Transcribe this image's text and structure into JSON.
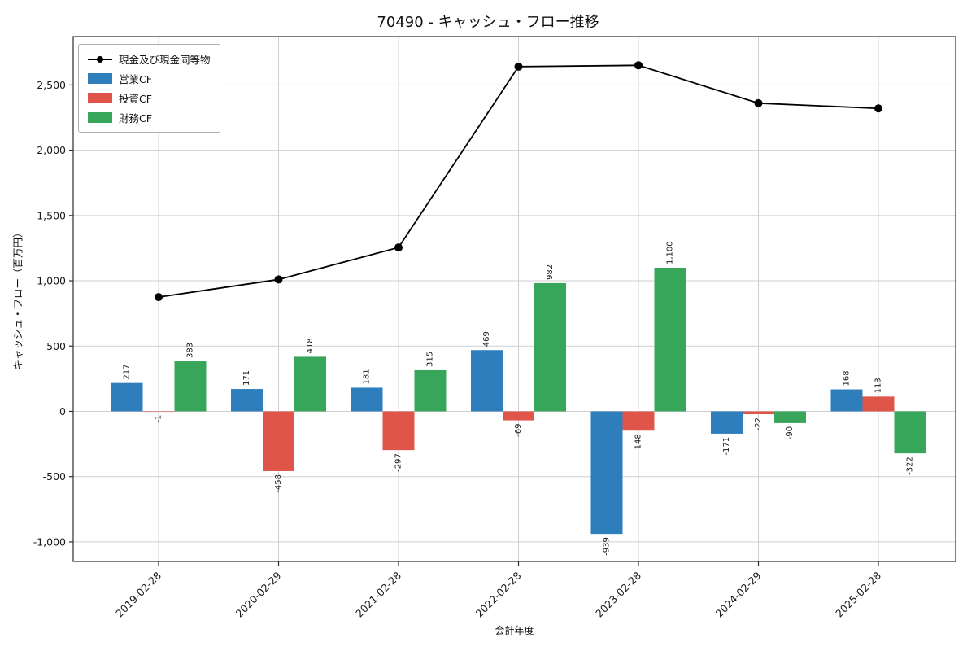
{
  "figure": {
    "title": "70490 - キャッシュ・フロー推移",
    "xlabel": "会計年度",
    "ylabel": "キャッシュ・フロー（百万円）"
  },
  "legend": {
    "items": [
      {
        "label": "現金及び現金同等物",
        "type": "line",
        "color": "#000000"
      },
      {
        "label": "営業CF",
        "type": "swatch",
        "color": "#2e7ebc"
      },
      {
        "label": "投資CF",
        "type": "swatch",
        "color": "#e0554a"
      },
      {
        "label": "財務CF",
        "type": "swatch",
        "color": "#38a65a"
      }
    ]
  },
  "chart_data": {
    "type": "bar+line",
    "title": "70490 - キャッシュ・フロー推移",
    "xlabel": "会計年度",
    "ylabel": "キャッシュ・フロー（百万円）",
    "categories": [
      "2019-02-28",
      "2020-02-29",
      "2021-02-28",
      "2022-02-28",
      "2023-02-28",
      "2024-02-29",
      "2025-02-28"
    ],
    "series": [
      {
        "name": "営業CF",
        "key": "operating-cf",
        "type": "bar",
        "color": "#2e7ebc",
        "values": [
          217,
          171,
          181,
          469,
          -939,
          -171,
          168
        ]
      },
      {
        "name": "投資CF",
        "key": "investing-cf",
        "type": "bar",
        "color": "#e0554a",
        "values": [
          -1,
          -458,
          -297,
          -69,
          -148,
          -22,
          113
        ]
      },
      {
        "name": "財務CF",
        "key": "financing-cf",
        "type": "bar",
        "color": "#38a65a",
        "values": [
          383,
          418,
          315,
          982,
          1100,
          -90,
          -322
        ]
      }
    ],
    "line_series": {
      "name": "現金及び現金同等物",
      "key": "cash-and-equivalents",
      "type": "line",
      "color": "#000000",
      "values": [
        875,
        1010,
        1255,
        2640,
        2650,
        2360,
        2320
      ]
    },
    "ylim": [
      -1150,
      2870
    ],
    "yticks": [
      -1000,
      -500,
      0,
      500,
      1000,
      1500,
      2000,
      2500
    ],
    "grid": true,
    "legend_position": "upper-left"
  }
}
